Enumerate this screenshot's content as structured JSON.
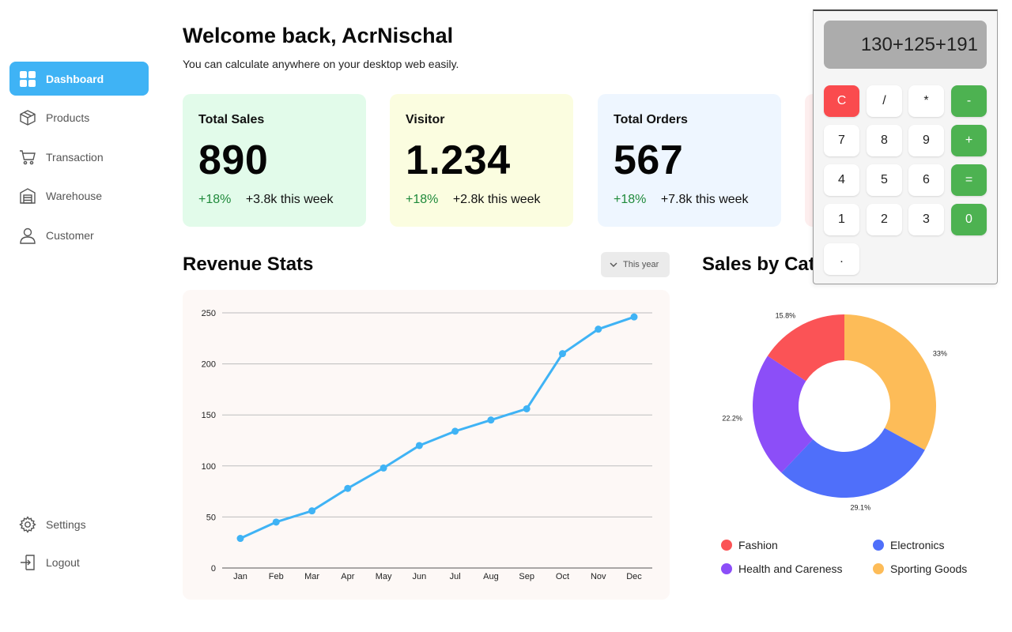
{
  "sidebar": {
    "items": [
      {
        "label": "Dashboard",
        "icon": "grid-icon"
      },
      {
        "label": "Products",
        "icon": "box-icon"
      },
      {
        "label": "Transaction",
        "icon": "cart-icon"
      },
      {
        "label": "Warehouse",
        "icon": "warehouse-icon"
      },
      {
        "label": "Customer",
        "icon": "user-icon"
      }
    ],
    "bottom": [
      {
        "label": "Settings",
        "icon": "gear-icon"
      },
      {
        "label": "Logout",
        "icon": "logout-icon"
      }
    ]
  },
  "header": {
    "title": "Welcome back, AcrNischal",
    "subtitle": "You can calculate anywhere on your desktop web easily."
  },
  "cards": [
    {
      "label": "Total Sales",
      "value": "890",
      "pct": "+18%",
      "note": "+3.8k this week",
      "bg": "#e2fbea"
    },
    {
      "label": "Visitor",
      "value": "1.234",
      "pct": "+18%",
      "note": "+2.8k this week",
      "bg": "#fbfde0"
    },
    {
      "label": "Total Orders",
      "value": "567",
      "pct": "+18%",
      "note": "+7.8k this week",
      "bg": "#eef6ff"
    }
  ],
  "revenue": {
    "title": "Revenue Stats",
    "filter": "This year"
  },
  "sales": {
    "title": "Sales by Cat"
  },
  "chart_data": [
    {
      "type": "line",
      "categories": [
        "Jan",
        "Feb",
        "Mar",
        "Apr",
        "May",
        "Jun",
        "Jul",
        "Aug",
        "Sep",
        "Oct",
        "Nov",
        "Dec"
      ],
      "values": [
        29,
        45,
        56,
        78,
        98,
        120,
        134,
        145,
        156,
        210,
        234,
        246
      ],
      "ylim": [
        0,
        250
      ],
      "yticks": [
        0,
        50,
        100,
        150,
        200,
        250
      ],
      "grid": true,
      "color": "#3fb3f5"
    },
    {
      "type": "pie",
      "style": "donut",
      "labels": [
        "Sporting Goods",
        "Electronics",
        "Health and Careness",
        "Fashion"
      ],
      "values": [
        33,
        29.1,
        22.2,
        15.8
      ],
      "value_labels": [
        "33%",
        "29.1%",
        "22.2%",
        "15.8%"
      ],
      "colors": [
        "#fdbc58",
        "#4f6ffa",
        "#8c4ef8",
        "#fb5356"
      ],
      "legend": [
        {
          "label": "Fashion",
          "color": "#fb5356"
        },
        {
          "label": "Electronics",
          "color": "#4f6ffa"
        },
        {
          "label": "Health and Careness",
          "color": "#8c4ef8"
        },
        {
          "label": "Sporting Goods",
          "color": "#fdbc58"
        }
      ],
      "legend_position": "bottom"
    }
  ],
  "calculator": {
    "display": "130+125+191",
    "keys": [
      "C",
      "/",
      "*",
      "-",
      "7",
      "8",
      "9",
      "+",
      "4",
      "5",
      "6",
      "=",
      "1",
      "2",
      "3",
      "0",
      "."
    ]
  }
}
